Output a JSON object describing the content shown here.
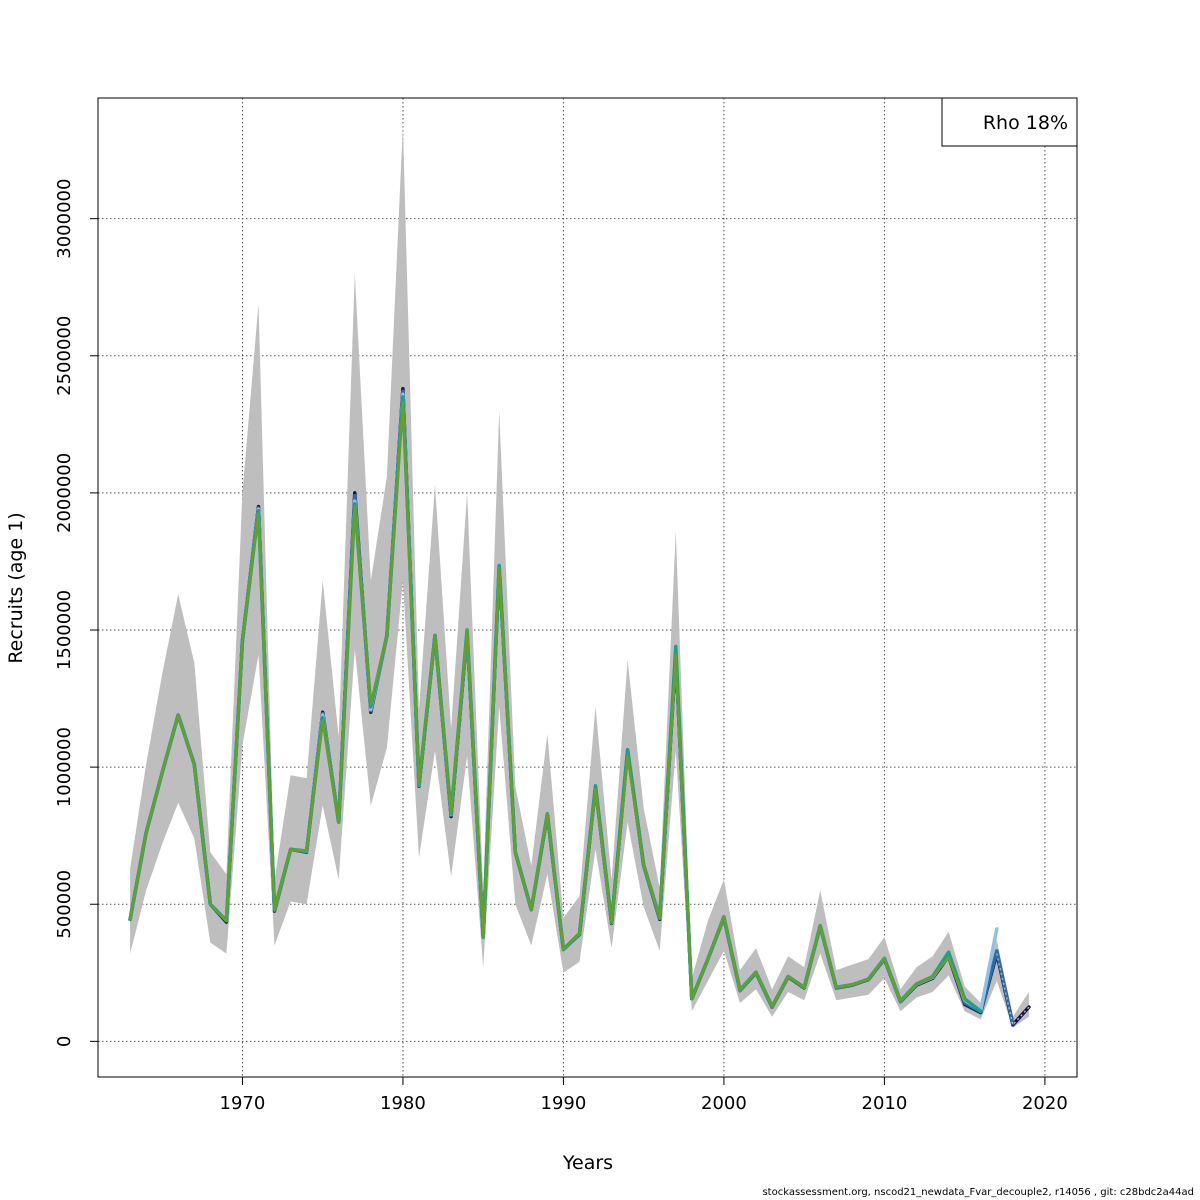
{
  "chart_data": {
    "type": "line",
    "xlabel": "Years",
    "ylabel": "Recruits (age 1)",
    "xlim": [
      1961,
      2022
    ],
    "ylim": [
      -130000,
      3440000
    ],
    "x_ticks": [
      1970,
      1980,
      1990,
      2000,
      2010,
      2020
    ],
    "y_ticks": [
      0,
      500000,
      1000000,
      1500000,
      2000000,
      2500000,
      3000000
    ],
    "grid": true,
    "legend": {
      "text": "Rho 18%",
      "placement": "top-right"
    },
    "band": {
      "x": [
        1963,
        1964,
        1965,
        1966,
        1967,
        1968,
        1969,
        1970,
        1971,
        1972,
        1973,
        1974,
        1975,
        1976,
        1977,
        1978,
        1979,
        1980,
        1981,
        1982,
        1983,
        1984,
        1985,
        1986,
        1987,
        1988,
        1989,
        1990,
        1991,
        1992,
        1993,
        1994,
        1995,
        1996,
        1997,
        1998,
        1999,
        2000,
        2001,
        2002,
        2003,
        2004,
        2005,
        2006,
        2007,
        2008,
        2009,
        2010,
        2011,
        2012,
        2013,
        2014,
        2015,
        2016,
        2017,
        2018,
        2019
      ],
      "upper": [
        630000,
        1010000,
        1340000,
        1630000,
        1380000,
        690000,
        610000,
        2000000,
        2690000,
        590000,
        970000,
        960000,
        1680000,
        1110000,
        2800000,
        1680000,
        2060000,
        3340000,
        1210000,
        2030000,
        1140000,
        2000000,
        550000,
        2300000,
        930000,
        640000,
        1120000,
        450000,
        530000,
        1220000,
        590000,
        1390000,
        850000,
        560000,
        1860000,
        230000,
        440000,
        590000,
        260000,
        340000,
        190000,
        310000,
        270000,
        550000,
        260000,
        280000,
        300000,
        380000,
        190000,
        270000,
        310000,
        400000,
        200000,
        140000,
        370000,
        90000,
        180000
      ],
      "lower": [
        320000,
        550000,
        720000,
        870000,
        740000,
        360000,
        320000,
        1080000,
        1410000,
        350000,
        510000,
        500000,
        860000,
        590000,
        1430000,
        860000,
        1070000,
        1680000,
        670000,
        1060000,
        600000,
        1040000,
        270000,
        1220000,
        500000,
        350000,
        610000,
        250000,
        290000,
        700000,
        340000,
        800000,
        490000,
        330000,
        1060000,
        110000,
        220000,
        330000,
        140000,
        190000,
        90000,
        180000,
        150000,
        320000,
        150000,
        160000,
        170000,
        230000,
        110000,
        160000,
        180000,
        240000,
        110000,
        80000,
        220000,
        50000,
        90000
      ]
    },
    "series": [
      {
        "color": "#1a0f4a",
        "x": [
          1963,
          1964,
          1965,
          1966,
          1967,
          1968,
          1969,
          1970,
          1971,
          1972,
          1973,
          1974,
          1975,
          1976,
          1977,
          1978,
          1979,
          1980,
          1981,
          1982,
          1983,
          1984,
          1985,
          1986,
          1987,
          1988,
          1989,
          1990,
          1991,
          1992,
          1993,
          1994,
          1995,
          1996,
          1997,
          1998,
          1999,
          2000,
          2001,
          2002,
          2003,
          2004,
          2005,
          2006,
          2007,
          2008,
          2009,
          2010,
          2011,
          2012,
          2013,
          2014,
          2015,
          2016,
          2017,
          2018,
          2019
        ],
        "values": [
          445000,
          760000,
          980000,
          1190000,
          1010000,
          500000,
          435000,
          1460000,
          1950000,
          475000,
          700000,
          690000,
          1200000,
          800000,
          2000000,
          1200000,
          1480000,
          2380000,
          930000,
          1480000,
          820000,
          1490000,
          380000,
          1730000,
          690000,
          480000,
          825000,
          335000,
          390000,
          925000,
          430000,
          1060000,
          640000,
          445000,
          1410000,
          155000,
          300000,
          450000,
          185000,
          250000,
          125000,
          235000,
          195000,
          420000,
          195000,
          205000,
          225000,
          300000,
          145000,
          205000,
          230000,
          310000,
          135000,
          105000,
          320000,
          60000,
          125000
        ]
      },
      {
        "color": "#2e6da4",
        "x": [
          1963,
          1964,
          1965,
          1966,
          1967,
          1968,
          1969,
          1970,
          1971,
          1972,
          1973,
          1974,
          1975,
          1976,
          1977,
          1978,
          1979,
          1980,
          1981,
          1982,
          1983,
          1984,
          1985,
          1986,
          1987,
          1988,
          1989,
          1990,
          1991,
          1992,
          1993,
          1994,
          1995,
          1996,
          1997,
          1998,
          1999,
          2000,
          2001,
          2002,
          2003,
          2004,
          2005,
          2006,
          2007,
          2008,
          2009,
          2010,
          2011,
          2012,
          2013,
          2014,
          2015,
          2016,
          2017,
          2018
        ],
        "values": [
          445000,
          760000,
          980000,
          1190000,
          1010000,
          500000,
          440000,
          1460000,
          1945000,
          478000,
          700000,
          692000,
          1195000,
          800000,
          1990000,
          1205000,
          1478000,
          2370000,
          932000,
          1480000,
          825000,
          1495000,
          380000,
          1735000,
          690000,
          480000,
          828000,
          335000,
          392000,
          928000,
          432000,
          1062000,
          641000,
          448000,
          1420000,
          155000,
          300000,
          452000,
          186000,
          251000,
          126000,
          236000,
          196000,
          421000,
          196000,
          206000,
          226000,
          302000,
          146000,
          207000,
          232000,
          315000,
          140000,
          108000,
          330000,
          65000
        ]
      },
      {
        "color": "#8fc1e3",
        "x": [
          1963,
          1964,
          1965,
          1966,
          1967,
          1968,
          1969,
          1970,
          1971,
          1972,
          1973,
          1974,
          1975,
          1976,
          1977,
          1978,
          1979,
          1980,
          1981,
          1982,
          1983,
          1984,
          1985,
          1986,
          1987,
          1988,
          1989,
          1990,
          1991,
          1992,
          1993,
          1994,
          1995,
          1996,
          1997,
          1998,
          1999,
          2000,
          2001,
          2002,
          2003,
          2004,
          2005,
          2006,
          2007,
          2008,
          2009,
          2010,
          2011,
          2012,
          2013,
          2014,
          2015,
          2016,
          2017
        ],
        "values": [
          445000,
          760000,
          980000,
          1190000,
          1010000,
          500000,
          440000,
          1460000,
          1940000,
          480000,
          700000,
          693000,
          1190000,
          800000,
          1970000,
          1210000,
          1480000,
          2360000,
          935000,
          1480000,
          828000,
          1500000,
          380000,
          1740000,
          690000,
          480000,
          830000,
          335000,
          393000,
          930000,
          433000,
          1063000,
          643000,
          450000,
          1430000,
          155000,
          300000,
          453000,
          187000,
          252000,
          127000,
          237000,
          197000,
          422000,
          197000,
          207000,
          227000,
          303000,
          147000,
          208000,
          234000,
          318000,
          150000,
          112000,
          410000
        ]
      },
      {
        "color": "#1f9e89",
        "x": [
          1963,
          1964,
          1965,
          1966,
          1967,
          1968,
          1969,
          1970,
          1971,
          1972,
          1973,
          1974,
          1975,
          1976,
          1977,
          1978,
          1979,
          1980,
          1981,
          1982,
          1983,
          1984,
          1985,
          1986,
          1987,
          1988,
          1989,
          1990,
          1991,
          1992,
          1993,
          1994,
          1995,
          1996,
          1997,
          1998,
          1999,
          2000,
          2001,
          2002,
          2003,
          2004,
          2005,
          2006,
          2007,
          2008,
          2009,
          2010,
          2011,
          2012,
          2013,
          2014,
          2015,
          2016
        ],
        "values": [
          445000,
          760000,
          980000,
          1190000,
          1010000,
          500000,
          440000,
          1460000,
          1935000,
          480000,
          700000,
          694000,
          1180000,
          800000,
          1960000,
          1220000,
          1480000,
          2350000,
          937000,
          1480000,
          830000,
          1500000,
          380000,
          1735000,
          690000,
          480000,
          830000,
          335000,
          394000,
          932000,
          434000,
          1064000,
          644000,
          451000,
          1440000,
          155000,
          300000,
          454000,
          188000,
          252000,
          127000,
          237000,
          197000,
          422000,
          197000,
          207000,
          227000,
          303000,
          148000,
          209000,
          236000,
          325000,
          155000,
          110000
        ]
      },
      {
        "color": "#6a9e2a",
        "x": [
          1963,
          1964,
          1965,
          1966,
          1967,
          1968,
          1969,
          1970,
          1971,
          1972,
          1973,
          1974,
          1975,
          1976,
          1977,
          1978,
          1979,
          1980,
          1981,
          1982,
          1983,
          1984,
          1985,
          1986,
          1987,
          1988,
          1989,
          1990,
          1991,
          1992,
          1993,
          1994,
          1995,
          1996,
          1997,
          1998,
          1999,
          2000,
          2001,
          2002,
          2003,
          2004,
          2005,
          2006,
          2007,
          2008,
          2009,
          2010,
          2011,
          2012,
          2013,
          2014,
          2015
        ],
        "values": [
          445000,
          760000,
          980000,
          1190000,
          1010000,
          500000,
          440000,
          1460000,
          1925000,
          480000,
          700000,
          695000,
          1170000,
          800000,
          1950000,
          1230000,
          1480000,
          2330000,
          940000,
          1480000,
          832000,
          1500000,
          380000,
          1725000,
          690000,
          480000,
          830000,
          335000,
          395000,
          920000,
          435000,
          1040000,
          645000,
          452000,
          1410000,
          155000,
          300000,
          454000,
          188000,
          252000,
          127000,
          237000,
          197000,
          422000,
          197000,
          207000,
          227000,
          303000,
          148000,
          209000,
          236000,
          305000,
          150000
        ]
      }
    ]
  },
  "footer": "stockassessment.org, nscod21_newdata_Fvar_decouple2, r14056 , git: c28bdc2a44ad"
}
